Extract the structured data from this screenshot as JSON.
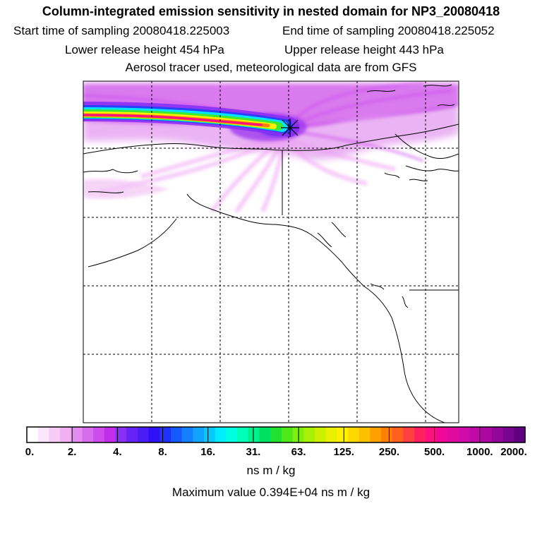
{
  "header": {
    "title": "Column-integrated emission sensitivity in nested domain for NP3_20080418",
    "start_time": "Start time of sampling 20080418.225003",
    "end_time": "End time of sampling 20080418.225052",
    "lower_release": "Lower release height  454 hPa",
    "upper_release": "Upper release height  443 hPa",
    "tracer_note": "Aerosol tracer used, meteorological data are from GFS"
  },
  "map": {
    "region": "Alaska, western Canada and US Pacific Northwest",
    "release_marker": "release-point-star"
  },
  "colorbar": {
    "labels": [
      "0.",
      "2.",
      "4.",
      "8.",
      "16.",
      "31.",
      "63.",
      "125.",
      "250.",
      "500.",
      "1000.",
      "2000."
    ],
    "colors": [
      "#ffffff",
      "#fbe6fb",
      "#f6ccf7",
      "#f0b0f3",
      "#e48cf0",
      "#d86cee",
      "#cc4cec",
      "#c02eea",
      "#8a30f4",
      "#6624f4",
      "#4a1cf6",
      "#3010f6",
      "#2030ff",
      "#1858ff",
      "#1480ff",
      "#10a4ff",
      "#08c8ff",
      "#00ecff",
      "#00ffe0",
      "#00ffb8",
      "#00f08c",
      "#00e060",
      "#20e030",
      "#4ee818",
      "#7cf010",
      "#a8f008",
      "#ccf000",
      "#e8f000",
      "#fff000",
      "#ffd800",
      "#ffc000",
      "#ffa000",
      "#ff8000",
      "#ff6020",
      "#ff4040",
      "#ff2060",
      "#ff1080",
      "#f00898",
      "#e00aa0",
      "#d00ca8",
      "#c00aa8",
      "#aa08a0",
      "#920698",
      "#780490",
      "#600080"
    ],
    "units": "ns m / kg",
    "max_value": "Maximum value  0.394E+04 ns m / kg",
    "frame_color": "#000000"
  }
}
